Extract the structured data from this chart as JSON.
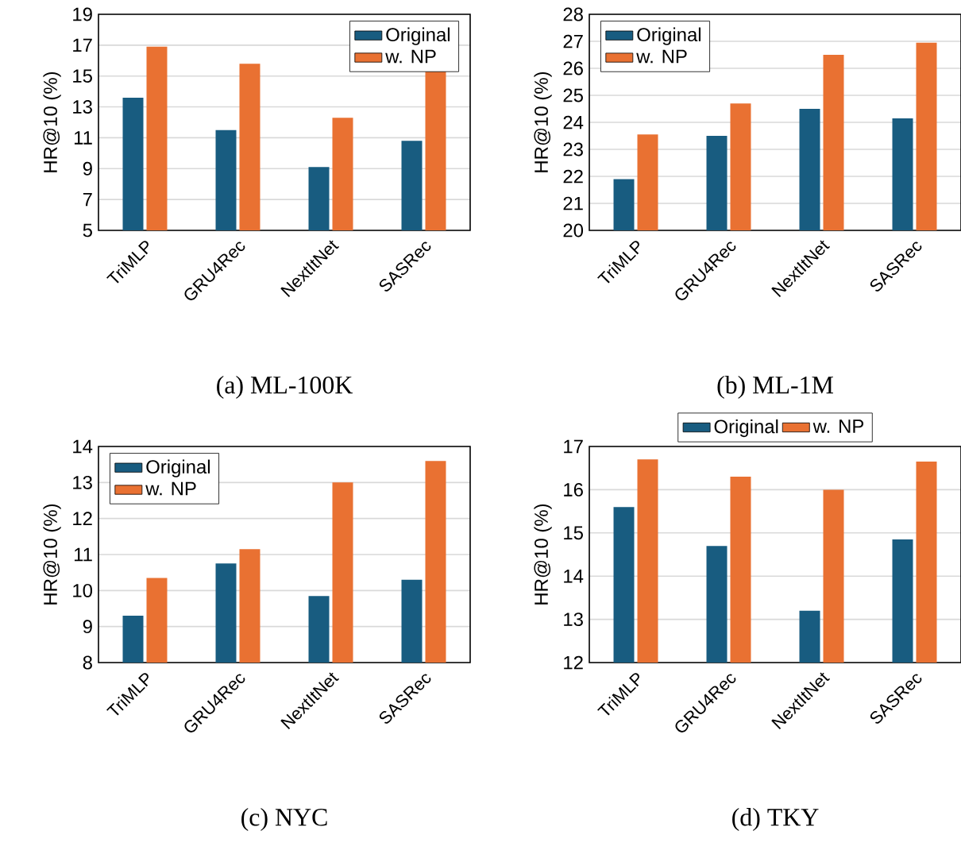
{
  "chart_data": [
    {
      "type": "bar",
      "title": "(a) ML-100K",
      "ylabel": "HR@10 (%)",
      "categories": [
        "TriMLP",
        "GRU4Rec",
        "NextItNet",
        "SASRec"
      ],
      "ylim": [
        5,
        19
      ],
      "yticks": [
        5,
        7,
        9,
        11,
        13,
        15,
        17,
        19
      ],
      "grid": "y",
      "legend": "top right",
      "series": [
        {
          "name": "Original",
          "color": "#185c80",
          "values": [
            13.6,
            11.5,
            9.1,
            10.8
          ]
        },
        {
          "name": "w. NP",
          "color": "#e97132",
          "values": [
            16.9,
            15.8,
            12.3,
            15.4
          ]
        }
      ]
    },
    {
      "type": "bar",
      "title": "(b) ML-1M",
      "ylabel": "HR@10 (%)",
      "categories": [
        "TriMLP",
        "GRU4Rec",
        "NextItNet",
        "SASRec"
      ],
      "ylim": [
        20,
        28
      ],
      "yticks": [
        20,
        21,
        22,
        23,
        24,
        25,
        26,
        27,
        28
      ],
      "grid": "y",
      "legend": "top left",
      "series": [
        {
          "name": "Original",
          "color": "#185c80",
          "values": [
            21.9,
            23.5,
            24.5,
            24.15
          ]
        },
        {
          "name": "w. NP",
          "color": "#e97132",
          "values": [
            23.55,
            24.7,
            26.5,
            26.95
          ]
        }
      ]
    },
    {
      "type": "bar",
      "title": "(c) NYC",
      "ylabel": "HR@10 (%)",
      "categories": [
        "TriMLP",
        "GRU4Rec",
        "NextItNet",
        "SASRec"
      ],
      "ylim": [
        8,
        14
      ],
      "yticks": [
        8,
        9,
        10,
        11,
        12,
        13,
        14
      ],
      "grid": "y",
      "legend": "top left",
      "series": [
        {
          "name": "Original",
          "color": "#185c80",
          "values": [
            9.3,
            10.75,
            9.85,
            10.3
          ]
        },
        {
          "name": "w. NP",
          "color": "#e97132",
          "values": [
            10.35,
            11.15,
            13.0,
            13.6
          ]
        }
      ]
    },
    {
      "type": "bar",
      "title": "(d) TKY",
      "ylabel": "HR@10 (%)",
      "categories": [
        "TriMLP",
        "GRU4Rec",
        "NextItNet",
        "SASRec"
      ],
      "ylim": [
        12,
        17
      ],
      "yticks": [
        12,
        13,
        14,
        15,
        16,
        17
      ],
      "grid": "y",
      "legend": "top",
      "series": [
        {
          "name": "Original",
          "color": "#185c80",
          "values": [
            15.6,
            14.7,
            13.2,
            14.85
          ]
        },
        {
          "name": "w. NP",
          "color": "#e97132",
          "values": [
            16.7,
            16.3,
            16.0,
            16.65
          ]
        }
      ]
    }
  ]
}
